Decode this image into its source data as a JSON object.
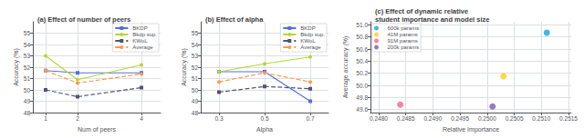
{
  "chart_data": [
    {
      "type": "line",
      "title": "(a) Effect of number of peers",
      "x_label": "Num of peers",
      "y_label": "Accuracy (%)",
      "xlim": [
        0.6,
        4.6
      ],
      "ylim": [
        48,
        56
      ],
      "xticks": [
        1,
        2,
        4
      ],
      "yticks": [
        48,
        49,
        50,
        51,
        52,
        53,
        54,
        55
      ],
      "grid": true,
      "legend": "upper right",
      "series": [
        {
          "name": "BKDP",
          "x": [
            1,
            2,
            4
          ],
          "values": [
            51.7,
            51.5,
            51.5
          ],
          "marker": "square",
          "line_style": "solid"
        },
        {
          "name": "Bkdp sup.",
          "x": [
            1,
            2,
            4
          ],
          "values": [
            53.0,
            50.9,
            52.2
          ],
          "marker": "circle",
          "line_style": "solid"
        },
        {
          "name": "KWoL",
          "x": [
            1,
            2,
            4
          ],
          "values": [
            50.0,
            49.4,
            50.2
          ],
          "marker": "square",
          "line_style": "dashed"
        },
        {
          "name": "Average",
          "x": [
            1,
            2,
            4
          ],
          "values": [
            51.7,
            50.6,
            51.4
          ],
          "marker": "circle",
          "line_style": "dashed"
        }
      ]
    },
    {
      "type": "line",
      "title": "(b) Effect of alpha",
      "x_label": "Alpha",
      "y_label": "Accuracy (%)",
      "xlim": [
        0.22,
        0.78
      ],
      "ylim": [
        48,
        56
      ],
      "xticks": [
        0.3,
        0.5,
        0.7
      ],
      "yticks": [
        48,
        49,
        50,
        51,
        52,
        53,
        54,
        55
      ],
      "grid": true,
      "legend": "upper right",
      "series": [
        {
          "name": "BKDP",
          "x": [
            0.3,
            0.5,
            0.7
          ],
          "values": [
            51.6,
            51.6,
            49.0
          ],
          "marker": "square",
          "line_style": "solid"
        },
        {
          "name": "Bkdp sup.",
          "x": [
            0.3,
            0.5,
            0.7
          ],
          "values": [
            51.6,
            52.3,
            52.9
          ],
          "marker": "circle",
          "line_style": "solid"
        },
        {
          "name": "KWoL",
          "x": [
            0.3,
            0.5,
            0.7
          ],
          "values": [
            49.8,
            50.3,
            50.1
          ],
          "marker": "square",
          "line_style": "dashed"
        },
        {
          "name": "Average",
          "x": [
            0.3,
            0.5,
            0.7
          ],
          "values": [
            50.7,
            51.5,
            50.7
          ],
          "marker": "circle",
          "line_style": "dashed"
        }
      ]
    },
    {
      "type": "scatter",
      "title": "(c) Effect of dynamic relative\nstudent importance and model size",
      "x_label": "Relative Importance",
      "y_label": "Average accuracy (%)",
      "xlim": [
        0.24785,
        0.25155
      ],
      "ylim": [
        49.55,
        51.05
      ],
      "xticks": [
        {
          "value": 0.248,
          "label": "0.2480"
        },
        0.2485,
        {
          "value": 0.249,
          "label": "0.2490"
        },
        0.2495,
        {
          "value": 0.25,
          "label": "0.2500"
        },
        0.2505,
        {
          "value": 0.251,
          "label": "0.2510"
        },
        0.2515
      ],
      "yticks": [
        49.6,
        49.8,
        {
          "value": 50,
          "label": "50.0"
        },
        50.2,
        50.4,
        50.6,
        50.8,
        {
          "value": 51,
          "label": "51.0"
        }
      ],
      "grid": true,
      "legend": "upper left",
      "series": [
        {
          "name": "600k params",
          "x": [
            0.2511
          ],
          "values": [
            50.87
          ]
        },
        {
          "name": "41M params",
          "x": [
            0.2503
          ],
          "values": [
            50.15
          ]
        },
        {
          "name": "91M params",
          "x": [
            0.2484
          ],
          "values": [
            49.68
          ]
        },
        {
          "name": "200k params",
          "x": [
            0.2501
          ],
          "values": [
            49.65
          ]
        }
      ]
    }
  ]
}
